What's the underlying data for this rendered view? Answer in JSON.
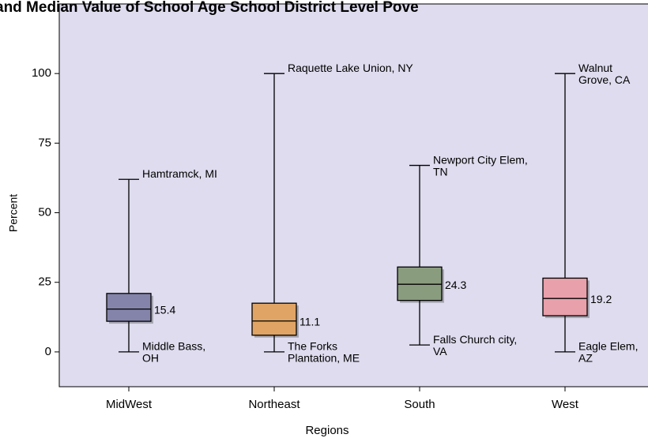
{
  "chart_data": {
    "type": "box",
    "title": "and Median Value of School Age School District Level Pove",
    "xlabel": "Regions",
    "ylabel": "Percent",
    "categories": [
      "MidWest",
      "Northeast",
      "South",
      "West"
    ],
    "series": [
      {
        "name": "MidWest",
        "color": "#8484aa",
        "min": 0,
        "q1": 11,
        "median": 15.4,
        "q3": 21,
        "max": 62,
        "max_label": [
          "Hamtramck, MI"
        ],
        "min_label": [
          "Middle Bass,",
          "OH"
        ]
      },
      {
        "name": "Northeast",
        "color": "#e0a464",
        "min": 0,
        "q1": 6,
        "median": 11.1,
        "q3": 17.5,
        "max": 100,
        "max_label": [
          "Raquette Lake Union, NY"
        ],
        "min_label": [
          "The Forks",
          "Plantation, ME"
        ]
      },
      {
        "name": "South",
        "color": "#8a9c7e",
        "min": 2.5,
        "q1": 18.5,
        "median": 24.3,
        "q3": 30.5,
        "max": 67,
        "max_label": [
          "Newport City Elem,",
          "TN"
        ],
        "min_label": [
          "Falls Church city,",
          "VA"
        ]
      },
      {
        "name": "West",
        "color": "#e8a0aa",
        "min": 0,
        "q1": 13,
        "median": 19.2,
        "q3": 26.5,
        "max": 100,
        "max_label": [
          "Walnut",
          "Grove, CA"
        ],
        "min_label": [
          "Eagle Elem,",
          "AZ"
        ]
      }
    ],
    "ylim": [
      -12.5,
      125
    ],
    "yticks": [
      0,
      25,
      50,
      75,
      100
    ]
  }
}
